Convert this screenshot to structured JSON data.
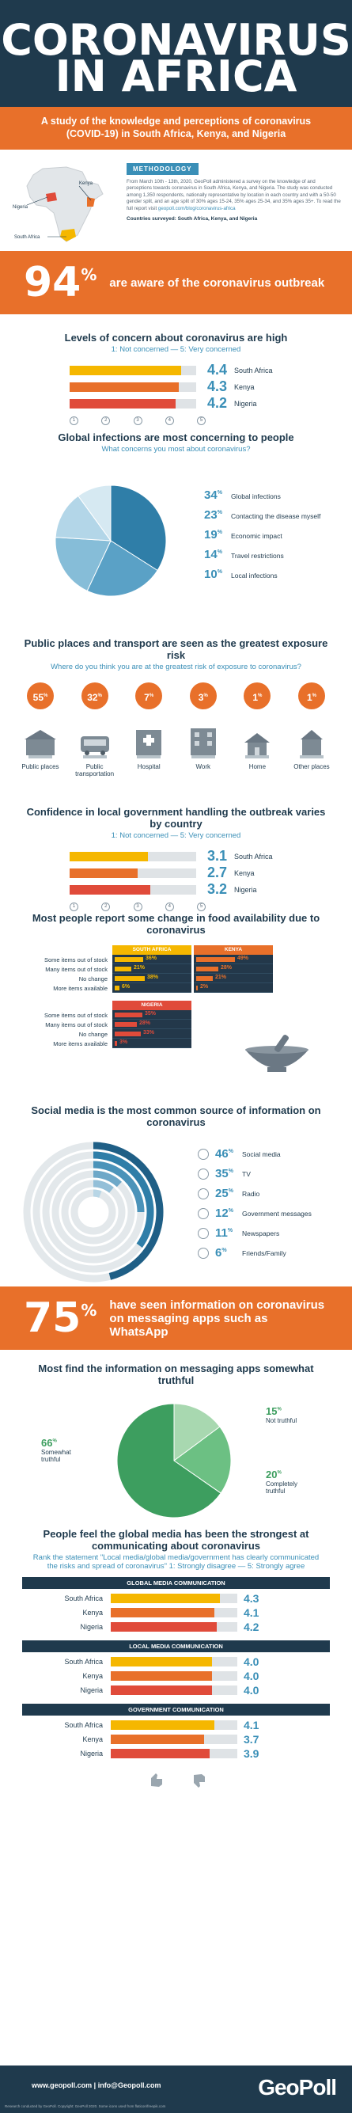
{
  "header": {
    "title_line1": "CORONAVIRUS",
    "title_line2": "IN AFRICA",
    "subtitle": "A study of the knowledge and perceptions of coronavirus (COVID-19) in South Africa, Kenya, and Nigeria"
  },
  "methodology": {
    "heading": "METHODOLOGY",
    "body": "From March 10th - 13th, 2020, GeoPoll administered a survey on the knowledge of and perceptions towards coronavirus in South Africa, Kenya, and Nigeria. The study was conducted among 1,350 respondents, nationally representative by location in each country and with a 50-50 gender split, and an age split of 30% ages 15-24, 35% ages 25-34, and 35% ages 35+. To read the full report visit",
    "link": "geopoll.com/blog/coronavirus-africa",
    "countries": "Countries surveyed: South Africa, Kenya, and Nigeria",
    "map_labels": [
      "Kenya",
      "Nigeria",
      "South Africa"
    ]
  },
  "aware": {
    "value": "94",
    "unit": "%",
    "text": "are aware of the coronavirus outbreak"
  },
  "concern": {
    "title": "Levels of concern about coronavirus are high",
    "subtitle": "1: Not concerned — 5: Very concerned",
    "rows": [
      {
        "country": "South Africa",
        "value": "4.4",
        "fraction": 0.88,
        "color": "#f5b700"
      },
      {
        "country": "Kenya",
        "value": "4.3",
        "fraction": 0.86,
        "color": "#e8702a"
      },
      {
        "country": "Nigeria",
        "value": "4.2",
        "fraction": 0.84,
        "color": "#e04b3a"
      }
    ],
    "scale": [
      "1",
      "2",
      "3",
      "4",
      "5"
    ]
  },
  "global_infections": {
    "title": "Global infections are most concerning to people",
    "subtitle": "What concerns you most about coronavirus?",
    "items": [
      {
        "value": "34",
        "label": "Global infections"
      },
      {
        "value": "23",
        "label": "Contacting the disease myself"
      },
      {
        "value": "19",
        "label": "Economic impact"
      },
      {
        "value": "14",
        "label": "Travel restrictions"
      },
      {
        "value": "10",
        "label": "Local infections"
      }
    ],
    "unit": "%"
  },
  "exposure": {
    "title": "Public places and transport are seen as the greatest exposure risk",
    "subtitle": "Where do you think you are at the greatest risk of exposure to coronavirus?",
    "places": [
      {
        "value": "55",
        "label": "Public places"
      },
      {
        "value": "32",
        "label": "Public transportation"
      },
      {
        "value": "7",
        "label": "Hospital"
      },
      {
        "value": "3",
        "label": "Work"
      },
      {
        "value": "1",
        "label": "Home"
      },
      {
        "value": "1",
        "label": "Other places"
      }
    ],
    "unit": "%"
  },
  "confidence": {
    "title": "Confidence in local government handling the outbreak varies by country",
    "subtitle": "1: Not concerned — 5: Very concerned",
    "rows": [
      {
        "country": "South Africa",
        "value": "3.1",
        "fraction": 0.62,
        "color": "#f5b700"
      },
      {
        "country": "Kenya",
        "value": "2.7",
        "fraction": 0.54,
        "color": "#e8702a"
      },
      {
        "country": "Nigeria",
        "value": "3.2",
        "fraction": 0.64,
        "color": "#e04b3a"
      }
    ],
    "scale": [
      "1",
      "2",
      "3",
      "4",
      "5"
    ]
  },
  "food": {
    "title": "Most people report some change in food availability due to coronavirus",
    "row_labels": [
      "Some items out of stock",
      "Many items out of stock",
      "No change",
      "More items available"
    ],
    "countries": [
      {
        "name": "SOUTH AFRICA",
        "color": "#f5b700",
        "values": [
          "36",
          "21",
          "38",
          "6"
        ]
      },
      {
        "name": "KENYA",
        "color": "#e8702a",
        "values": [
          "49",
          "28",
          "21",
          "2"
        ]
      },
      {
        "name": "NIGERIA",
        "color": "#e04b3a",
        "values": [
          "35",
          "28",
          "33",
          "3"
        ]
      }
    ],
    "unit": "%"
  },
  "social": {
    "title": "Social media is the most common source of information on coronavirus",
    "items": [
      {
        "value": "46",
        "label": "Social media"
      },
      {
        "value": "35",
        "label": "TV"
      },
      {
        "value": "25",
        "label": "Radio"
      },
      {
        "value": "12",
        "label": "Government messages"
      },
      {
        "value": "11",
        "label": "Newspapers"
      },
      {
        "value": "6",
        "label": "Friends/Family"
      }
    ],
    "unit": "%"
  },
  "messaging_band": {
    "value": "75",
    "unit": "%",
    "text": "have seen information on coronavirus on messaging apps such as WhatsApp"
  },
  "truthful": {
    "title": "Most find the information on messaging apps somewhat truthful",
    "items": [
      {
        "value": "66",
        "label": "Somewhat truthful",
        "color": "#3d9e5f"
      },
      {
        "value": "15",
        "label": "Not truthful",
        "color": "#a8d8b0"
      },
      {
        "value": "20",
        "label": "Completely truthful",
        "color": "#6cc083"
      }
    ],
    "unit": "%"
  },
  "media": {
    "title": "People feel the global media has been the strongest at communicating about coronavirus",
    "subtitle": "Rank the statement \"Local media/global media/government has clearly communicated the risks and spread of coronavirus\" 1: Strongly disagree — 5: Strongly agree",
    "groups": [
      {
        "heading": "GLOBAL MEDIA COMMUNICATION",
        "rows": [
          {
            "country": "South Africa",
            "value": "4.3",
            "fraction": 0.86,
            "color": "#f5b700"
          },
          {
            "country": "Kenya",
            "value": "4.1",
            "fraction": 0.82,
            "color": "#e8702a"
          },
          {
            "country": "Nigeria",
            "value": "4.2",
            "fraction": 0.84,
            "color": "#e04b3a"
          }
        ]
      },
      {
        "heading": "LOCAL MEDIA COMMUNICATION",
        "rows": [
          {
            "country": "South Africa",
            "value": "4.0",
            "fraction": 0.8,
            "color": "#f5b700"
          },
          {
            "country": "Kenya",
            "value": "4.0",
            "fraction": 0.8,
            "color": "#e8702a"
          },
          {
            "country": "Nigeria",
            "value": "4.0",
            "fraction": 0.8,
            "color": "#e04b3a"
          }
        ]
      },
      {
        "heading": "GOVERNMENT COMMUNICATION",
        "rows": [
          {
            "country": "South Africa",
            "value": "4.1",
            "fraction": 0.82,
            "color": "#f5b700"
          },
          {
            "country": "Kenya",
            "value": "3.7",
            "fraction": 0.74,
            "color": "#e8702a"
          },
          {
            "country": "Nigeria",
            "value": "3.9",
            "fraction": 0.78,
            "color": "#e04b3a"
          }
        ]
      }
    ]
  },
  "footer": {
    "contact": "www.geopoll.com | info@Geopoll.com",
    "fine_print": "Research conducted by GeoPoll. Copyright: GeoPoll 2020. Some icons used from flaticon/freepik.com",
    "logo": "GeoPoll"
  }
}
